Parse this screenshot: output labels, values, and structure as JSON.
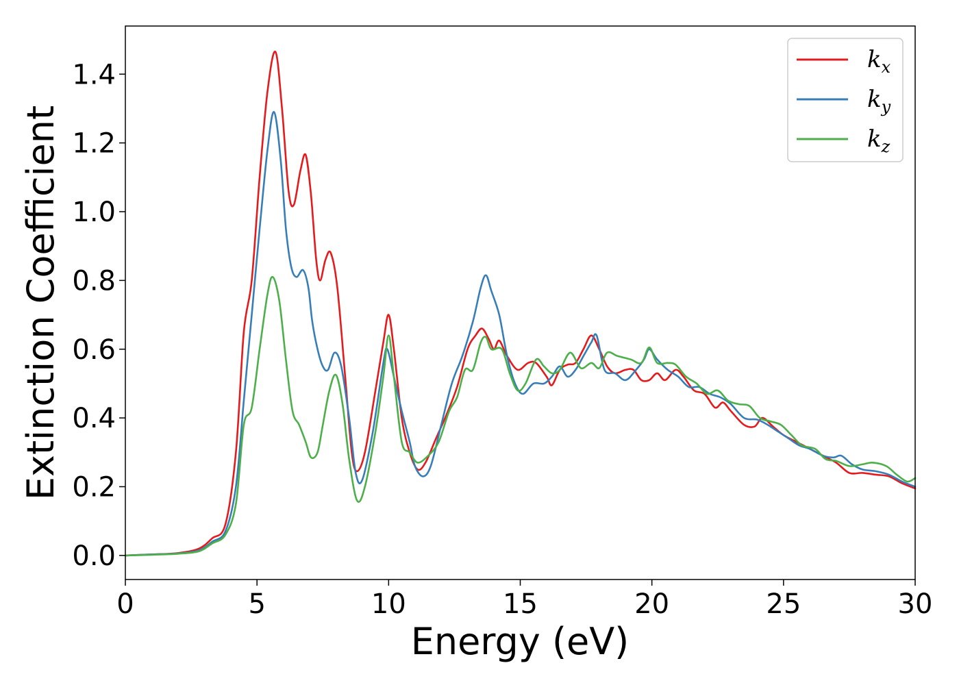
{
  "chart_data": {
    "type": "line",
    "xlabel": "Energy (eV)",
    "ylabel": "Extinction Coefficient",
    "xlim": [
      0,
      30
    ],
    "ylim": [
      -0.07,
      1.54
    ],
    "xticks": [
      0,
      5,
      10,
      15,
      20,
      25,
      30
    ],
    "xtick_labels": [
      "0",
      "5",
      "10",
      "15",
      "20",
      "25",
      "30"
    ],
    "yticks": [
      0.0,
      0.2,
      0.4,
      0.6,
      0.8,
      1.0,
      1.2,
      1.4
    ],
    "ytick_labels": [
      "0.0",
      "0.2",
      "0.4",
      "0.6",
      "0.8",
      "1.0",
      "1.2",
      "1.4"
    ],
    "grid": false,
    "legend_position": "top-right",
    "series": [
      {
        "name": "k",
        "subscript": "x",
        "color": "#e41a1c",
        "points": [
          [
            0,
            0.0
          ],
          [
            1,
            0.003
          ],
          [
            2,
            0.007
          ],
          [
            2.8,
            0.02
          ],
          [
            3.3,
            0.05
          ],
          [
            3.8,
            0.09
          ],
          [
            4.2,
            0.3
          ],
          [
            4.5,
            0.65
          ],
          [
            4.8,
            0.8
          ],
          [
            5.1,
            1.1
          ],
          [
            5.4,
            1.35
          ],
          [
            5.7,
            1.465
          ],
          [
            5.95,
            1.3
          ],
          [
            6.2,
            1.06
          ],
          [
            6.4,
            1.02
          ],
          [
            6.65,
            1.12
          ],
          [
            6.85,
            1.165
          ],
          [
            7.05,
            1.05
          ],
          [
            7.25,
            0.86
          ],
          [
            7.4,
            0.8
          ],
          [
            7.6,
            0.86
          ],
          [
            7.8,
            0.88
          ],
          [
            8.05,
            0.78
          ],
          [
            8.35,
            0.52
          ],
          [
            8.6,
            0.3
          ],
          [
            8.8,
            0.245
          ],
          [
            9.1,
            0.3
          ],
          [
            9.5,
            0.48
          ],
          [
            9.8,
            0.62
          ],
          [
            10.0,
            0.7
          ],
          [
            10.2,
            0.6
          ],
          [
            10.5,
            0.4
          ],
          [
            10.8,
            0.3
          ],
          [
            11.1,
            0.25
          ],
          [
            11.4,
            0.27
          ],
          [
            11.8,
            0.34
          ],
          [
            12.2,
            0.41
          ],
          [
            12.6,
            0.49
          ],
          [
            13.0,
            0.6
          ],
          [
            13.3,
            0.64
          ],
          [
            13.55,
            0.66
          ],
          [
            13.8,
            0.63
          ],
          [
            14.0,
            0.6
          ],
          [
            14.2,
            0.625
          ],
          [
            14.5,
            0.58
          ],
          [
            14.9,
            0.54
          ],
          [
            15.3,
            0.56
          ],
          [
            15.6,
            0.56
          ],
          [
            16.0,
            0.52
          ],
          [
            16.2,
            0.495
          ],
          [
            16.5,
            0.54
          ],
          [
            16.8,
            0.555
          ],
          [
            17.1,
            0.56
          ],
          [
            17.4,
            0.6
          ],
          [
            17.7,
            0.64
          ],
          [
            18.0,
            0.6
          ],
          [
            18.3,
            0.55
          ],
          [
            18.6,
            0.53
          ],
          [
            19.0,
            0.54
          ],
          [
            19.3,
            0.54
          ],
          [
            19.6,
            0.51
          ],
          [
            19.9,
            0.51
          ],
          [
            20.2,
            0.53
          ],
          [
            20.5,
            0.51
          ],
          [
            20.9,
            0.54
          ],
          [
            21.2,
            0.52
          ],
          [
            21.6,
            0.48
          ],
          [
            22.0,
            0.47
          ],
          [
            22.4,
            0.43
          ],
          [
            22.7,
            0.445
          ],
          [
            23.0,
            0.42
          ],
          [
            23.5,
            0.38
          ],
          [
            23.9,
            0.375
          ],
          [
            24.2,
            0.4
          ],
          [
            24.6,
            0.375
          ],
          [
            25.0,
            0.35
          ],
          [
            25.5,
            0.33
          ],
          [
            26.0,
            0.31
          ],
          [
            26.5,
            0.29
          ],
          [
            27.0,
            0.27
          ],
          [
            27.5,
            0.24
          ],
          [
            28.0,
            0.24
          ],
          [
            28.5,
            0.235
          ],
          [
            29.0,
            0.23
          ],
          [
            29.5,
            0.21
          ],
          [
            30.0,
            0.195
          ]
        ]
      },
      {
        "name": "k",
        "subscript": "y",
        "color": "#377eb8",
        "points": [
          [
            0,
            0.0
          ],
          [
            1,
            0.003
          ],
          [
            2,
            0.006
          ],
          [
            2.8,
            0.015
          ],
          [
            3.3,
            0.04
          ],
          [
            3.8,
            0.07
          ],
          [
            4.2,
            0.2
          ],
          [
            4.5,
            0.45
          ],
          [
            4.8,
            0.7
          ],
          [
            5.1,
            0.95
          ],
          [
            5.4,
            1.18
          ],
          [
            5.65,
            1.29
          ],
          [
            5.9,
            1.15
          ],
          [
            6.1,
            0.95
          ],
          [
            6.3,
            0.84
          ],
          [
            6.5,
            0.81
          ],
          [
            6.75,
            0.83
          ],
          [
            6.95,
            0.78
          ],
          [
            7.1,
            0.68
          ],
          [
            7.3,
            0.6
          ],
          [
            7.5,
            0.55
          ],
          [
            7.7,
            0.54
          ],
          [
            7.95,
            0.59
          ],
          [
            8.2,
            0.55
          ],
          [
            8.5,
            0.4
          ],
          [
            8.75,
            0.24
          ],
          [
            9.0,
            0.22
          ],
          [
            9.4,
            0.36
          ],
          [
            9.8,
            0.56
          ],
          [
            9.95,
            0.6
          ],
          [
            10.2,
            0.52
          ],
          [
            10.5,
            0.42
          ],
          [
            10.8,
            0.33
          ],
          [
            11.0,
            0.26
          ],
          [
            11.3,
            0.23
          ],
          [
            11.6,
            0.26
          ],
          [
            12.0,
            0.38
          ],
          [
            12.4,
            0.5
          ],
          [
            12.8,
            0.58
          ],
          [
            13.2,
            0.68
          ],
          [
            13.5,
            0.78
          ],
          [
            13.7,
            0.815
          ],
          [
            13.9,
            0.77
          ],
          [
            14.2,
            0.7
          ],
          [
            14.5,
            0.58
          ],
          [
            14.8,
            0.5
          ],
          [
            15.1,
            0.47
          ],
          [
            15.5,
            0.5
          ],
          [
            15.9,
            0.5
          ],
          [
            16.2,
            0.52
          ],
          [
            16.5,
            0.55
          ],
          [
            16.8,
            0.52
          ],
          [
            17.1,
            0.54
          ],
          [
            17.4,
            0.58
          ],
          [
            17.7,
            0.62
          ],
          [
            17.9,
            0.64
          ],
          [
            18.2,
            0.54
          ],
          [
            18.6,
            0.53
          ],
          [
            19.0,
            0.51
          ],
          [
            19.4,
            0.54
          ],
          [
            19.7,
            0.57
          ],
          [
            19.9,
            0.6
          ],
          [
            20.2,
            0.57
          ],
          [
            20.6,
            0.54
          ],
          [
            21.0,
            0.52
          ],
          [
            21.4,
            0.49
          ],
          [
            21.8,
            0.49
          ],
          [
            22.2,
            0.47
          ],
          [
            22.6,
            0.46
          ],
          [
            23.0,
            0.44
          ],
          [
            23.5,
            0.4
          ],
          [
            24.0,
            0.395
          ],
          [
            24.4,
            0.38
          ],
          [
            24.8,
            0.36
          ],
          [
            25.2,
            0.34
          ],
          [
            25.6,
            0.32
          ],
          [
            26.0,
            0.31
          ],
          [
            26.5,
            0.29
          ],
          [
            26.9,
            0.285
          ],
          [
            27.2,
            0.29
          ],
          [
            27.6,
            0.265
          ],
          [
            28.0,
            0.25
          ],
          [
            28.5,
            0.245
          ],
          [
            29.0,
            0.235
          ],
          [
            29.5,
            0.215
          ],
          [
            30.0,
            0.2
          ]
        ]
      },
      {
        "name": "k",
        "subscript": "z",
        "color": "#4daf4a",
        "points": [
          [
            0,
            0.0
          ],
          [
            1,
            0.002
          ],
          [
            2,
            0.005
          ],
          [
            2.8,
            0.012
          ],
          [
            3.3,
            0.035
          ],
          [
            3.8,
            0.06
          ],
          [
            4.2,
            0.15
          ],
          [
            4.5,
            0.38
          ],
          [
            4.8,
            0.43
          ],
          [
            5.1,
            0.6
          ],
          [
            5.4,
            0.76
          ],
          [
            5.6,
            0.81
          ],
          [
            5.85,
            0.74
          ],
          [
            6.1,
            0.57
          ],
          [
            6.35,
            0.42
          ],
          [
            6.6,
            0.38
          ],
          [
            6.85,
            0.33
          ],
          [
            7.05,
            0.285
          ],
          [
            7.3,
            0.3
          ],
          [
            7.5,
            0.38
          ],
          [
            7.75,
            0.48
          ],
          [
            8.0,
            0.525
          ],
          [
            8.25,
            0.44
          ],
          [
            8.5,
            0.28
          ],
          [
            8.8,
            0.16
          ],
          [
            9.1,
            0.2
          ],
          [
            9.5,
            0.36
          ],
          [
            9.8,
            0.52
          ],
          [
            10.0,
            0.64
          ],
          [
            10.2,
            0.52
          ],
          [
            10.5,
            0.33
          ],
          [
            10.8,
            0.3
          ],
          [
            11.1,
            0.27
          ],
          [
            11.5,
            0.29
          ],
          [
            11.9,
            0.33
          ],
          [
            12.3,
            0.42
          ],
          [
            12.6,
            0.46
          ],
          [
            12.9,
            0.54
          ],
          [
            13.2,
            0.54
          ],
          [
            13.5,
            0.62
          ],
          [
            13.7,
            0.635
          ],
          [
            13.9,
            0.6
          ],
          [
            14.3,
            0.6
          ],
          [
            14.6,
            0.53
          ],
          [
            14.9,
            0.48
          ],
          [
            15.2,
            0.5
          ],
          [
            15.6,
            0.57
          ],
          [
            15.9,
            0.55
          ],
          [
            16.2,
            0.53
          ],
          [
            16.5,
            0.54
          ],
          [
            16.9,
            0.59
          ],
          [
            17.3,
            0.545
          ],
          [
            17.7,
            0.56
          ],
          [
            18.0,
            0.545
          ],
          [
            18.3,
            0.59
          ],
          [
            18.7,
            0.58
          ],
          [
            19.2,
            0.57
          ],
          [
            19.6,
            0.56
          ],
          [
            19.9,
            0.605
          ],
          [
            20.2,
            0.56
          ],
          [
            20.6,
            0.56
          ],
          [
            20.9,
            0.555
          ],
          [
            21.3,
            0.52
          ],
          [
            21.7,
            0.5
          ],
          [
            22.1,
            0.47
          ],
          [
            22.5,
            0.48
          ],
          [
            22.9,
            0.45
          ],
          [
            23.3,
            0.44
          ],
          [
            23.7,
            0.435
          ],
          [
            24.1,
            0.4
          ],
          [
            24.5,
            0.39
          ],
          [
            24.9,
            0.38
          ],
          [
            25.3,
            0.35
          ],
          [
            25.7,
            0.32
          ],
          [
            26.2,
            0.31
          ],
          [
            26.6,
            0.28
          ],
          [
            27.0,
            0.275
          ],
          [
            27.5,
            0.26
          ],
          [
            28.0,
            0.265
          ],
          [
            28.4,
            0.27
          ],
          [
            28.9,
            0.26
          ],
          [
            29.3,
            0.235
          ],
          [
            29.7,
            0.215
          ],
          [
            30.0,
            0.225
          ]
        ]
      }
    ]
  }
}
